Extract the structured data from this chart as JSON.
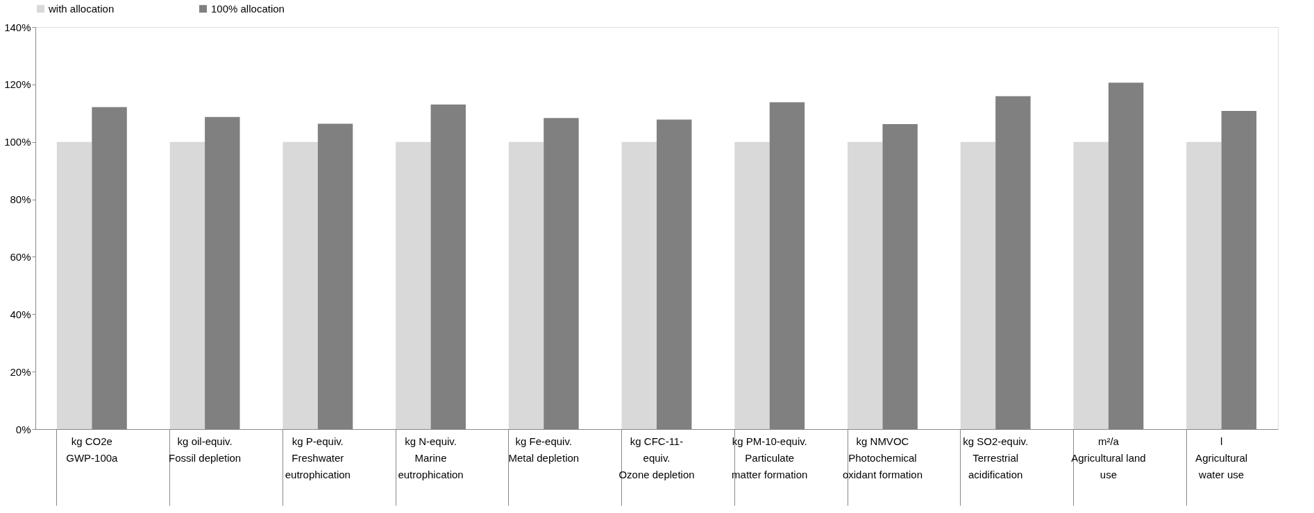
{
  "chart_data": {
    "type": "bar",
    "categories": [
      "kg CO2e\n\nGWP-100a",
      "kg oil-equiv.\n\nFossil depletion",
      "kg P-equiv.\n\nFreshwater\neutrophication",
      "kg N-equiv.\n\nMarine\neutrophication",
      "kg Fe-equiv.\n\nMetal depletion",
      "kg CFC-11-\nequiv.\nOzone depletion",
      "kg PM-10-equiv.\n\nParticulate\nmatter formation",
      "kg NMVOC\n\nPhotochemical\noxidant formation",
      "kg SO2-equiv.\n\nTerrestrial\nacidification",
      "m²/a\n\nAgricultural land\nuse",
      "l\n\nAgricultural\nwater use"
    ],
    "series": [
      {
        "name": "with allocation",
        "color": "#d9d9d9",
        "values": [
          100,
          100,
          100,
          100,
          100,
          100,
          100,
          100,
          100,
          100,
          100
        ]
      },
      {
        "name": "100% allocation",
        "color": "#808080",
        "values": [
          112.1,
          108.7,
          106.3,
          113.0,
          108.3,
          107.8,
          113.8,
          106.2,
          115.9,
          120.6,
          110.8
        ]
      }
    ],
    "ylim": [
      0,
      140
    ],
    "yticks": [
      {
        "value": 0,
        "label": "0%"
      },
      {
        "value": 20,
        "label": "20%"
      },
      {
        "value": 40,
        "label": "40%"
      },
      {
        "value": 60,
        "label": "60%"
      },
      {
        "value": 80,
        "label": "80%"
      },
      {
        "value": 100,
        "label": "100%"
      },
      {
        "value": 120,
        "label": "120%"
      },
      {
        "value": 140,
        "label": "140%"
      }
    ],
    "grid": false,
    "legend": "top"
  }
}
